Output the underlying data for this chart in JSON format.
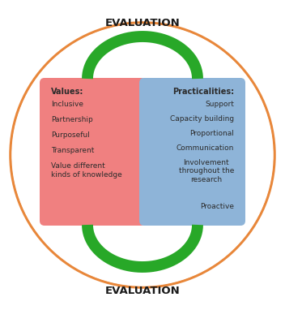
{
  "title_top": "EVALUATION",
  "title_bottom": "EVALUATION",
  "values_title": "Values:",
  "values_items": [
    "Inclusive",
    "Partnership",
    "Purposeful",
    "Transparent",
    "Value different\nkinds of knowledge"
  ],
  "practicalities_title": "Practicalities:",
  "practicalities_items": [
    "Support",
    "Capacity building",
    "Proportional",
    "Communication",
    "Involvement\nthroughout the\nresearch",
    "Proactive"
  ],
  "values_color": "#F08080",
  "practicalities_color": "#8EB4D8",
  "arrow_color": "#28A828",
  "outer_circle_color": "#E8873A",
  "bg_color": "#FFFFFF",
  "text_color": "#2C2C2C",
  "eval_text_color": "#1A1A1A",
  "fig_w": 3.52,
  "fig_h": 3.82,
  "dpi": 100
}
